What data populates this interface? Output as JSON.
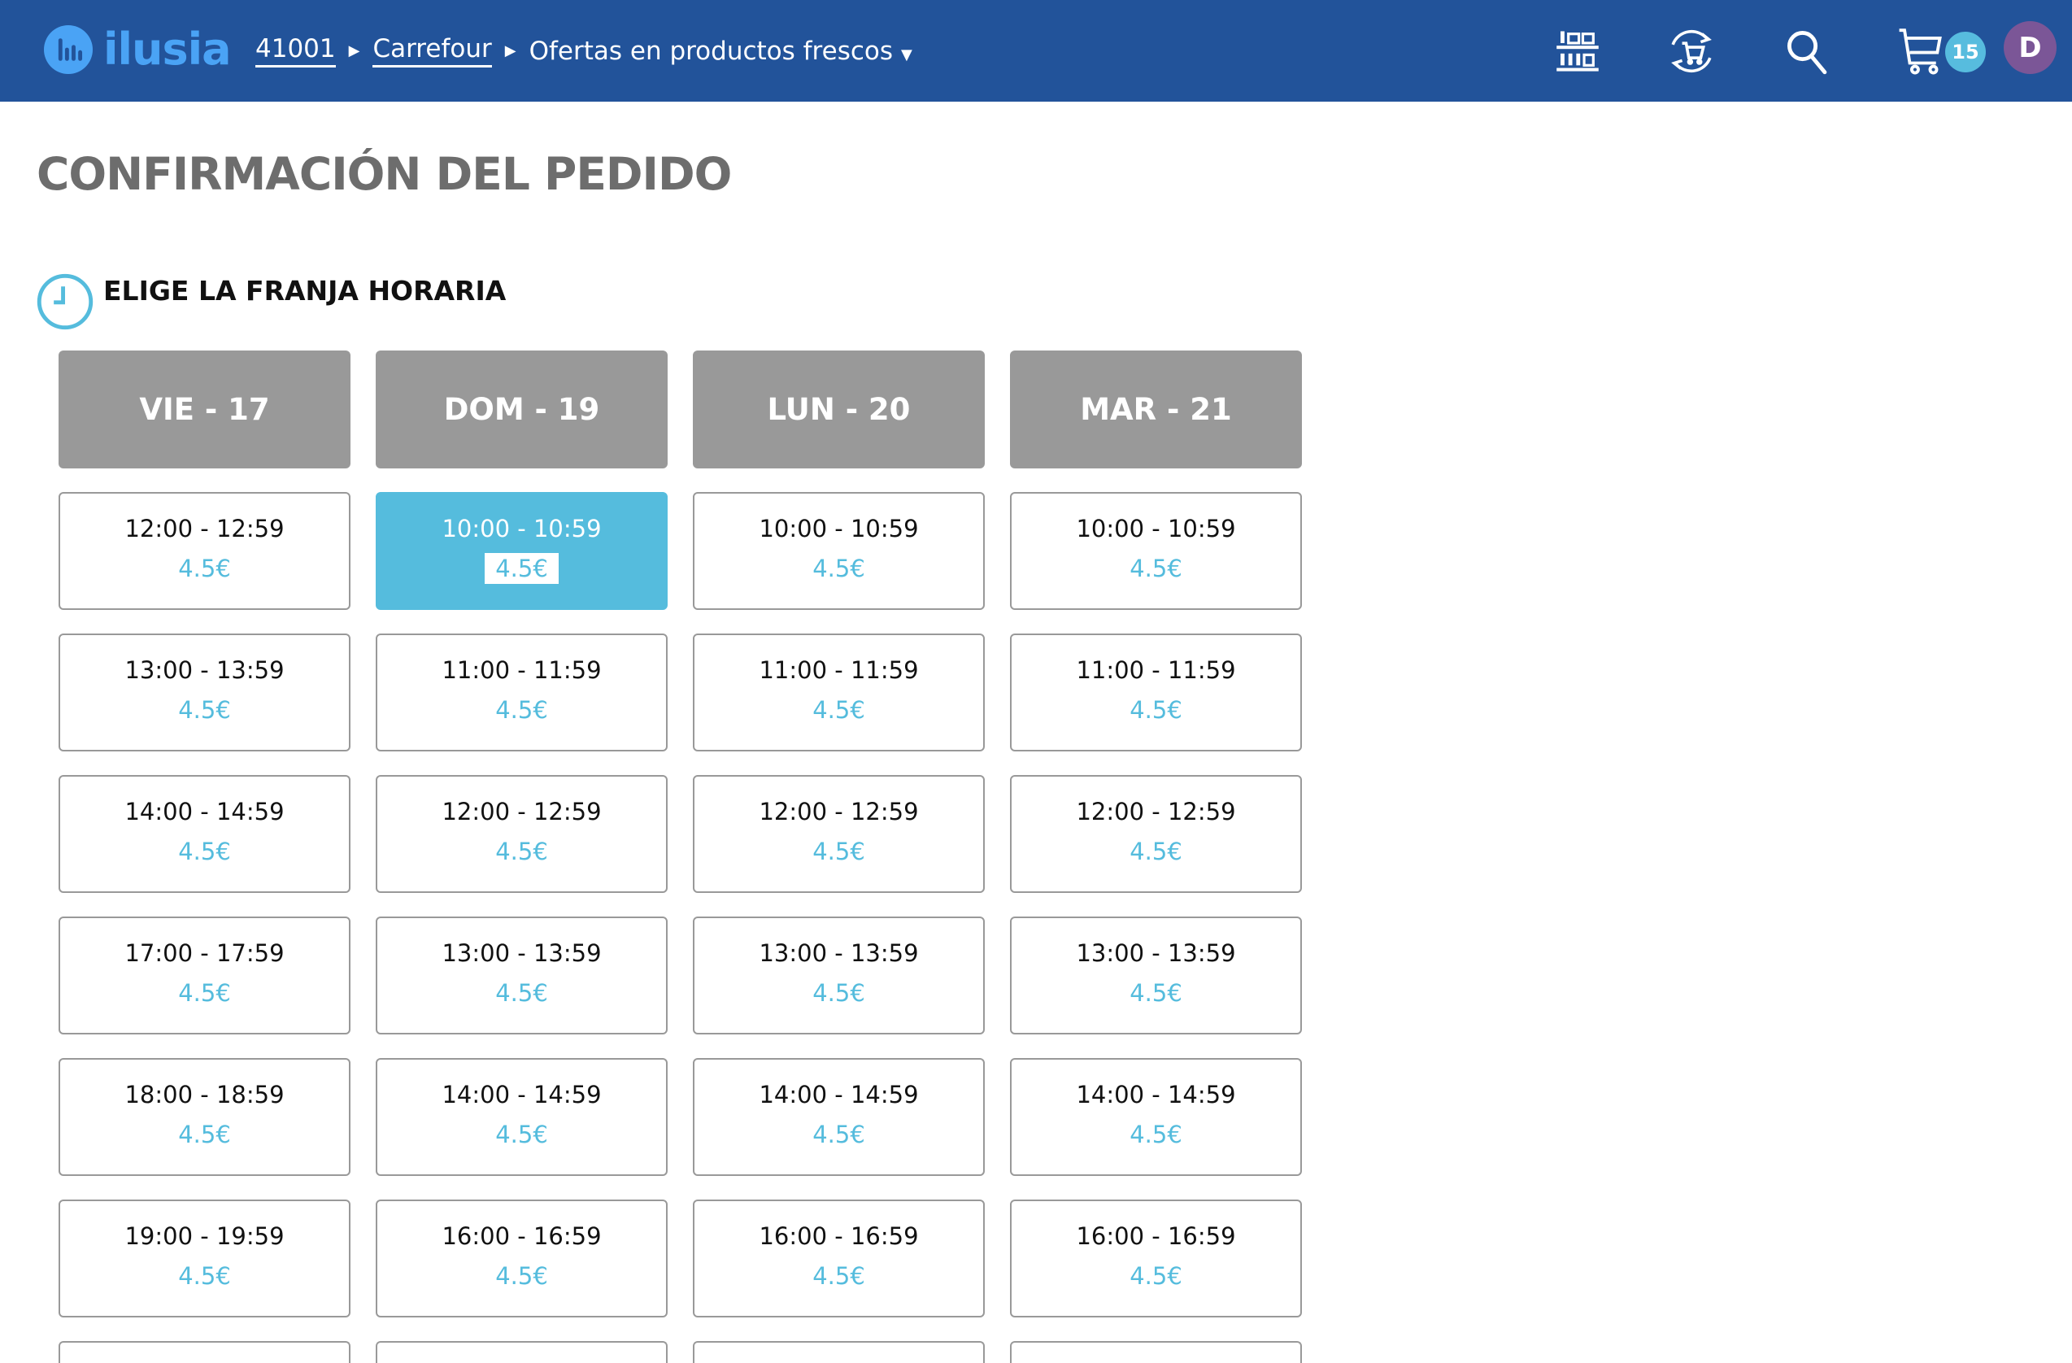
{
  "header": {
    "logo_text": "ilusia",
    "breadcrumb": [
      {
        "label": "41001"
      },
      {
        "label": "Carrefour"
      },
      {
        "label": "Ofertas en productos frescos"
      }
    ],
    "icons": [
      "shelf-icon",
      "reorder-cart-icon",
      "search-icon",
      "cart-icon"
    ],
    "cart_count": "15",
    "avatar_initial": "D",
    "colors": {
      "background": "#22539a",
      "logo": "#4aa3f5",
      "badge": "#57bcde",
      "avatar": "#7b5697"
    }
  },
  "page": {
    "title": "CONFIRMACIÓN DEL PEDIDO",
    "section_title": "ELIGE LA FRANJA HORARIA",
    "accent_color": "#55bcdd"
  },
  "days": [
    {
      "label": "VIE - 17",
      "slots": [
        {
          "time": "12:00 - 12:59",
          "price": "4.5€"
        },
        {
          "time": "13:00 - 13:59",
          "price": "4.5€"
        },
        {
          "time": "14:00 - 14:59",
          "price": "4.5€"
        },
        {
          "time": "17:00 - 17:59",
          "price": "4.5€"
        },
        {
          "time": "18:00 - 18:59",
          "price": "4.5€"
        },
        {
          "time": "19:00 - 19:59",
          "price": "4.5€"
        }
      ]
    },
    {
      "label": "DOM - 19",
      "slots": [
        {
          "time": "10:00 - 10:59",
          "price": "4.5€",
          "selected": true
        },
        {
          "time": "11:00 - 11:59",
          "price": "4.5€"
        },
        {
          "time": "12:00 - 12:59",
          "price": "4.5€"
        },
        {
          "time": "13:00 - 13:59",
          "price": "4.5€"
        },
        {
          "time": "14:00 - 14:59",
          "price": "4.5€"
        },
        {
          "time": "16:00 - 16:59",
          "price": "4.5€"
        }
      ]
    },
    {
      "label": "LUN - 20",
      "slots": [
        {
          "time": "10:00 - 10:59",
          "price": "4.5€"
        },
        {
          "time": "11:00 - 11:59",
          "price": "4.5€"
        },
        {
          "time": "12:00 - 12:59",
          "price": "4.5€"
        },
        {
          "time": "13:00 - 13:59",
          "price": "4.5€"
        },
        {
          "time": "14:00 - 14:59",
          "price": "4.5€"
        },
        {
          "time": "16:00 - 16:59",
          "price": "4.5€"
        }
      ]
    },
    {
      "label": "MAR - 21",
      "slots": [
        {
          "time": "10:00 - 10:59",
          "price": "4.5€"
        },
        {
          "time": "11:00 - 11:59",
          "price": "4.5€"
        },
        {
          "time": "12:00 - 12:59",
          "price": "4.5€"
        },
        {
          "time": "13:00 - 13:59",
          "price": "4.5€"
        },
        {
          "time": "14:00 - 14:59",
          "price": "4.5€"
        },
        {
          "time": "16:00 - 16:59",
          "price": "4.5€"
        }
      ]
    }
  ]
}
